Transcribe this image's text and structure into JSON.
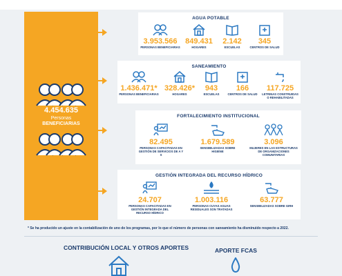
{
  "beneficiaries": {
    "number": "4.454.635",
    "label_line1": "Personas",
    "label_line2": "BENEFICIARIAS"
  },
  "agua_potable": {
    "title": "AGUA POTABLE",
    "stats": [
      {
        "value": "3.953.566",
        "label": "PERSONAS BENEFICIARIAS",
        "icon": "people-icon"
      },
      {
        "value": "849.431",
        "label": "HOGARES",
        "icon": "house-icon"
      },
      {
        "value": "2.142",
        "label": "ESCUELAS",
        "icon": "book-icon"
      },
      {
        "value": "345",
        "label": "CENTROS DE SALUD",
        "icon": "hospital-icon"
      }
    ]
  },
  "saneamiento": {
    "title": "SANEAMIENTO",
    "stats": [
      {
        "value": "1.436.471*",
        "label": "PERSONAS BENEFICIARIAS",
        "icon": "people-icon"
      },
      {
        "value": "328.426*",
        "label": "HOGARES",
        "icon": "house-icon"
      },
      {
        "value": "943",
        "label": "ESCUELAS",
        "icon": "book-icon"
      },
      {
        "value": "166",
        "label": "CENTROS DE SALUD",
        "icon": "hospital-icon"
      },
      {
        "value": "117.725",
        "label": "LETRINAS CONSTRUIDAS O REHABILITADAS",
        "icon": "faucet-icon"
      }
    ]
  },
  "fortalecimiento": {
    "title": "FORTALECIMIENTO INSTITUCIONAL",
    "stats": [
      {
        "value": "82.495",
        "label": "PERSONAS CAPACITADAS EN GESTIÓN DE SERVICIOS DE A Y S",
        "icon": "training-icon"
      },
      {
        "value": "1.679.589",
        "label": "SENSIBILIZADAS SOBRE HIGIENE",
        "icon": "handwash-icon"
      },
      {
        "value": "3.096",
        "label": "MUJERES EN LAS ESTRUCTURAS DE ORGANIZACIONES COMUNITARIAS",
        "icon": "women-icon"
      }
    ]
  },
  "gestion": {
    "title": "GESTIÓN INTEGRADA DEL RECURSO HÍDRICO",
    "stats": [
      {
        "value": "24.707",
        "label": "PERSONAS CAPACITADAS EN GESTIÓN INTEGRADA DEL RECURSO HÍDRICO",
        "icon": "training-icon"
      },
      {
        "value": "1.003.116",
        "label": "PERSONAS CUYAS AGUAS RESIDUALES SON TRATADAS",
        "icon": "water-treatment-icon"
      },
      {
        "value": "63.777",
        "label": "SENSIBILIZADAS SOBRE GIRH",
        "icon": "handwash-icon"
      }
    ]
  },
  "footnote": "* Se ha producido un ajuste en la contabilización de uno de los programas, por lo que el número de personas con saneamiento ha disminuido respecto a 2022.",
  "bottom": {
    "left_title": "CONTRIBUCIÓN LOCAL Y OTROS APORTES",
    "right_title": "APORTE FCAS"
  },
  "colors": {
    "orange": "#f5a623",
    "navy": "#1a3a6b",
    "blue": "#2b79c2"
  }
}
